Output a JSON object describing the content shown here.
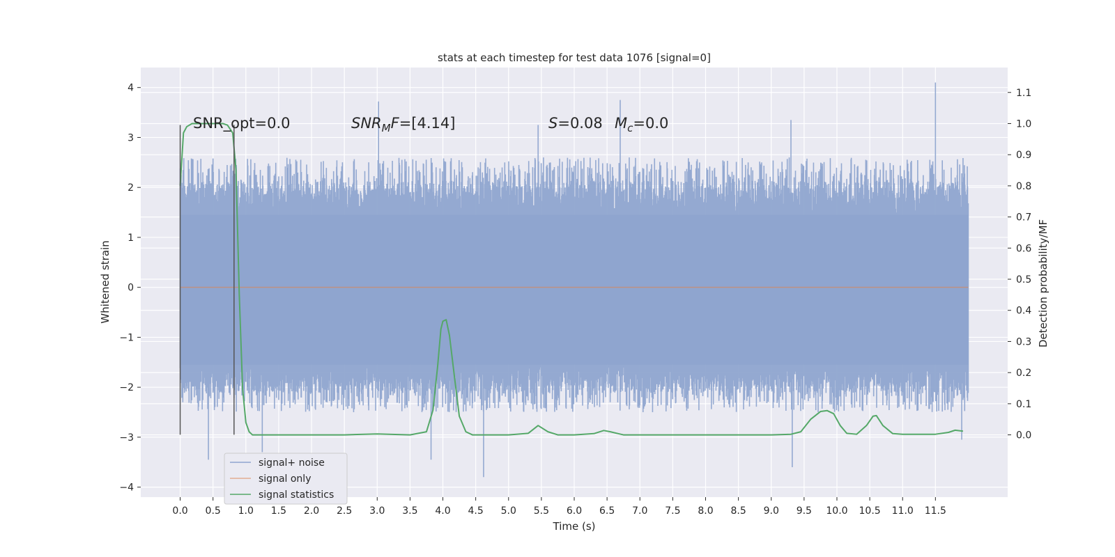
{
  "chart_data": {
    "type": "line",
    "title": "stats at each timestep for test data 1076 [signal=0]",
    "xlabel": "Time (s)",
    "ylabel": "Whitened strain",
    "y2label": "Detection probability/MF",
    "xlim": [
      -0.6,
      12.6
    ],
    "ylim": [
      -4.2,
      4.4
    ],
    "y2lim": [
      -0.2,
      1.18
    ],
    "xticks": [
      "0.0",
      "0.5",
      "1.0",
      "1.5",
      "2.0",
      "2.5",
      "3.0",
      "3.5",
      "4.0",
      "4.5",
      "5.0",
      "5.5",
      "6.0",
      "6.5",
      "7.0",
      "7.5",
      "8.0",
      "8.5",
      "9.0",
      "9.5",
      "10.0",
      "10.5",
      "11.0",
      "11.5"
    ],
    "yticks": [
      "4",
      "3",
      "2",
      "1",
      "0",
      "−1",
      "−2",
      "−3",
      "−4"
    ],
    "y2ticks": [
      "1.1",
      "1.0",
      "0.9",
      "0.8",
      "0.7",
      "0.6",
      "0.5",
      "0.4",
      "0.3",
      "0.2",
      "0.1",
      "0.0"
    ],
    "grid": true,
    "legend_position": "lower-left",
    "annotations": {
      "snr_opt": "SNR_opt=0.0",
      "snr_mf_main": "SNR",
      "snr_mf_sub": "M",
      "snr_mf_rest": "F=[4.14]",
      "s_main": "S",
      "s_rest": "=0.08",
      "mc_main": "M",
      "mc_sub": "c",
      "mc_rest": "=0.0"
    },
    "vlines": [
      0.0,
      0.82
    ],
    "vline_range": [
      -2.95,
      3.25
    ],
    "series": [
      {
        "name": "signal+ noise",
        "color": "#8fa5cf",
        "kind": "noise",
        "x_range": [
          0.0,
          12.0
        ],
        "core_band": [
          -1.55,
          1.45
        ],
        "typical_peak_band": [
          -2.5,
          2.6
        ],
        "extreme_points": [
          {
            "x": 3.02,
            "y": 3.72
          },
          {
            "x": 6.7,
            "y": 3.75
          },
          {
            "x": 11.5,
            "y": 4.1
          },
          {
            "x": 9.3,
            "y": 3.35
          },
          {
            "x": 5.45,
            "y": 3.25
          },
          {
            "x": 0.43,
            "y": -3.45
          },
          {
            "x": 4.62,
            "y": -3.8
          },
          {
            "x": 9.32,
            "y": -3.6
          },
          {
            "x": 3.82,
            "y": -3.45
          },
          {
            "x": 1.25,
            "y": -3.3
          },
          {
            "x": 11.9,
            "y": -3.05
          }
        ]
      },
      {
        "name": "signal only",
        "color": "#dd8452",
        "kind": "line",
        "x": [
          0.0,
          12.0
        ],
        "y": [
          0.0,
          0.0
        ]
      },
      {
        "name": "signal statistics",
        "color": "#55a868",
        "kind": "line",
        "axis": "right",
        "x": [
          0.0,
          0.05,
          0.1,
          0.18,
          0.3,
          0.5,
          0.65,
          0.72,
          0.8,
          0.85,
          0.9,
          0.95,
          1.0,
          1.05,
          1.1,
          1.3,
          1.8,
          2.5,
          3.0,
          3.5,
          3.75,
          3.85,
          3.92,
          3.97,
          4.0,
          4.05,
          4.1,
          4.18,
          4.25,
          4.35,
          4.45,
          5.0,
          5.3,
          5.45,
          5.6,
          5.75,
          6.0,
          6.3,
          6.45,
          6.55,
          6.75,
          7.2,
          8.0,
          9.0,
          9.3,
          9.45,
          9.6,
          9.75,
          9.85,
          9.95,
          10.05,
          10.15,
          10.3,
          10.45,
          10.55,
          10.6,
          10.7,
          10.85,
          11.0,
          11.5,
          11.7,
          11.8,
          11.92
        ],
        "y": [
          0.8,
          0.97,
          0.99,
          1.0,
          1.0,
          1.0,
          1.0,
          0.995,
          0.97,
          0.85,
          0.45,
          0.15,
          0.04,
          0.01,
          0.0,
          0.0,
          0.0,
          0.0,
          0.003,
          0.0,
          0.01,
          0.08,
          0.22,
          0.34,
          0.365,
          0.37,
          0.32,
          0.18,
          0.06,
          0.01,
          0.0,
          0.0,
          0.005,
          0.03,
          0.01,
          0.0,
          0.0,
          0.004,
          0.014,
          0.01,
          0.0,
          0.0,
          0.0,
          0.0,
          0.002,
          0.01,
          0.05,
          0.075,
          0.078,
          0.068,
          0.03,
          0.005,
          0.002,
          0.03,
          0.06,
          0.062,
          0.03,
          0.004,
          0.002,
          0.002,
          0.008,
          0.015,
          0.012
        ]
      }
    ]
  }
}
